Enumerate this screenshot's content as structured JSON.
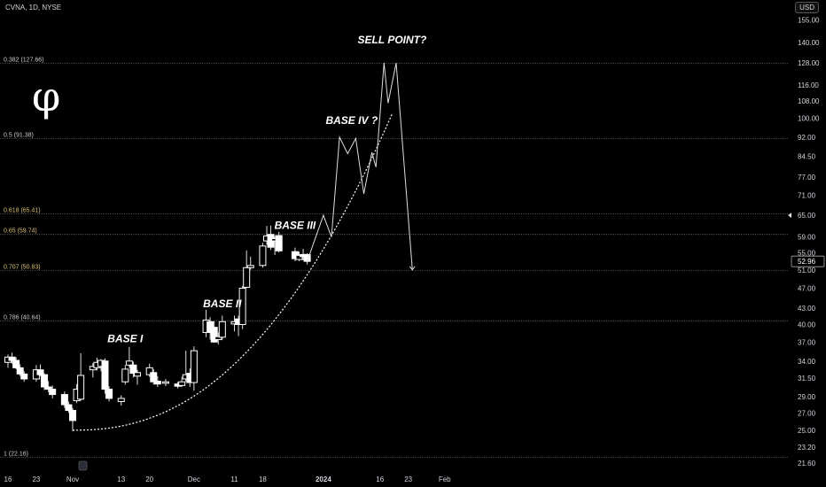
{
  "header": {
    "symbol": "CVNA, 1D, NYSE",
    "currency": "USD"
  },
  "logo": {
    "glyph": "φ"
  },
  "chart_data": {
    "type": "candlestick",
    "y_scale": "log",
    "ylim": [
      20.5,
      160
    ],
    "y_ticks": [
      "155.00",
      "140.00",
      "128.00",
      "116.00",
      "108.00",
      "100.00",
      "92.00",
      "84.50",
      "77.00",
      "71.00",
      "65.00",
      "59.00",
      "55.00",
      "51.00",
      "47.00",
      "43.00",
      "40.00",
      "37.00",
      "34.00",
      "31.50",
      "29.00",
      "27.00",
      "25.00",
      "23.20",
      "21.60"
    ],
    "x_ticks": [
      {
        "label": "16",
        "date": "2023-10-16",
        "bold": false
      },
      {
        "label": "23",
        "date": "2023-10-23",
        "bold": false
      },
      {
        "label": "Nov",
        "date": "2023-11-01",
        "bold": false
      },
      {
        "label": "13",
        "date": "2023-11-13",
        "bold": false
      },
      {
        "label": "20",
        "date": "2023-11-20",
        "bold": false
      },
      {
        "label": "Dec",
        "date": "2023-12-01",
        "bold": false
      },
      {
        "label": "11",
        "date": "2023-12-11",
        "bold": false
      },
      {
        "label": "18",
        "date": "2023-12-18",
        "bold": false
      },
      {
        "label": "2024",
        "date": "2024-01-02",
        "bold": true
      },
      {
        "label": "16",
        "date": "2024-01-16",
        "bold": false
      },
      {
        "label": "23",
        "date": "2024-01-23",
        "bold": false
      },
      {
        "label": "Feb",
        "date": "2024-02-01",
        "bold": false
      }
    ],
    "fib_levels": [
      {
        "label": "0.382 (127.66)",
        "value": 127.66,
        "color": "#cccccc"
      },
      {
        "label": "0.5 (91.38)",
        "value": 91.38,
        "color": "#cccccc"
      },
      {
        "label": "0.618 (65.41)",
        "value": 65.41,
        "color": "#d8c070"
      },
      {
        "label": "0.65 (59.74)",
        "value": 59.74,
        "color": "#d8c070"
      },
      {
        "label": "0.707 (50.83)",
        "value": 50.83,
        "color": "#d8c070"
      },
      {
        "label": "0.786 (40.64)",
        "value": 40.64,
        "color": "#cccccc"
      },
      {
        "label": "1 (22.16)",
        "value": 22.16,
        "color": "#cccccc"
      }
    ],
    "last_price": "52.96",
    "candles": [
      {
        "date": "2023-10-16",
        "o": 33.8,
        "h": 35.0,
        "l": 33.0,
        "c": 34.6
      },
      {
        "date": "2023-10-17",
        "o": 34.6,
        "h": 35.3,
        "l": 33.6,
        "c": 34.1
      },
      {
        "date": "2023-10-18",
        "o": 34.1,
        "h": 34.6,
        "l": 32.8,
        "c": 33.0
      },
      {
        "date": "2023-10-19",
        "o": 33.0,
        "h": 33.5,
        "l": 31.8,
        "c": 32.1
      },
      {
        "date": "2023-10-20",
        "o": 32.1,
        "h": 32.5,
        "l": 31.0,
        "c": 31.4
      },
      {
        "date": "2023-10-23",
        "o": 31.4,
        "h": 33.4,
        "l": 31.0,
        "c": 32.7
      },
      {
        "date": "2023-10-24",
        "o": 32.7,
        "h": 33.5,
        "l": 31.8,
        "c": 32.0
      },
      {
        "date": "2023-10-25",
        "o": 32.0,
        "h": 32.2,
        "l": 29.9,
        "c": 30.3
      },
      {
        "date": "2023-10-26",
        "o": 30.3,
        "h": 31.1,
        "l": 29.6,
        "c": 30.0
      },
      {
        "date": "2023-10-27",
        "o": 30.0,
        "h": 30.5,
        "l": 28.8,
        "c": 29.3
      },
      {
        "date": "2023-10-30",
        "o": 29.3,
        "h": 29.7,
        "l": 27.6,
        "c": 28.0
      },
      {
        "date": "2023-10-31",
        "o": 28.0,
        "h": 28.4,
        "l": 27.0,
        "c": 27.3
      },
      {
        "date": "2023-11-01",
        "o": 27.3,
        "h": 27.6,
        "l": 24.9,
        "c": 26.1
      },
      {
        "date": "2023-11-02",
        "o": 28.5,
        "h": 30.7,
        "l": 28.2,
        "c": 30.0
      },
      {
        "date": "2023-11-03",
        "o": 28.7,
        "h": 35.2,
        "l": 28.5,
        "c": 31.9
      },
      {
        "date": "2023-11-06",
        "o": 32.7,
        "h": 33.7,
        "l": 31.6,
        "c": 33.2
      },
      {
        "date": "2023-11-07",
        "o": 33.0,
        "h": 34.5,
        "l": 32.6,
        "c": 33.8
      },
      {
        "date": "2023-11-08",
        "o": 33.2,
        "h": 34.3,
        "l": 32.5,
        "c": 34.1
      },
      {
        "date": "2023-11-09",
        "o": 34.0,
        "h": 34.4,
        "l": 29.4,
        "c": 30.0
      },
      {
        "date": "2023-11-10",
        "o": 30.0,
        "h": 30.4,
        "l": 28.4,
        "c": 28.8
      },
      {
        "date": "2023-11-13",
        "o": 28.4,
        "h": 29.2,
        "l": 27.9,
        "c": 28.8
      },
      {
        "date": "2023-11-14",
        "o": 31.0,
        "h": 33.4,
        "l": 30.6,
        "c": 32.8
      },
      {
        "date": "2023-11-15",
        "o": 33.4,
        "h": 36.2,
        "l": 33.0,
        "c": 34.0
      },
      {
        "date": "2023-11-16",
        "o": 33.4,
        "h": 33.9,
        "l": 31.6,
        "c": 32.2
      },
      {
        "date": "2023-11-17",
        "o": 31.8,
        "h": 32.7,
        "l": 30.6,
        "c": 32.3
      },
      {
        "date": "2023-11-20",
        "o": 32.0,
        "h": 33.6,
        "l": 31.7,
        "c": 33.0
      },
      {
        "date": "2023-11-21",
        "o": 32.3,
        "h": 32.8,
        "l": 30.6,
        "c": 31.0
      },
      {
        "date": "2023-11-22",
        "o": 31.1,
        "h": 31.8,
        "l": 30.3,
        "c": 30.7
      },
      {
        "date": "2023-11-24",
        "o": 30.8,
        "h": 31.4,
        "l": 30.4,
        "c": 31.0
      },
      {
        "date": "2023-11-27",
        "o": 30.7,
        "h": 31.0,
        "l": 30.1,
        "c": 30.4
      },
      {
        "date": "2023-11-28",
        "o": 30.5,
        "h": 31.7,
        "l": 30.3,
        "c": 31.0
      },
      {
        "date": "2023-11-29",
        "o": 31.4,
        "h": 35.6,
        "l": 31.0,
        "c": 32.0
      },
      {
        "date": "2023-11-30",
        "o": 32.2,
        "h": 32.9,
        "l": 30.3,
        "c": 30.9
      },
      {
        "date": "2023-12-01",
        "o": 30.9,
        "h": 36.3,
        "l": 29.8,
        "c": 35.6
      },
      {
        "date": "2023-12-04",
        "o": 38.6,
        "h": 42.7,
        "l": 37.8,
        "c": 40.8
      },
      {
        "date": "2023-12-05",
        "o": 40.5,
        "h": 41.3,
        "l": 37.4,
        "c": 38.6
      },
      {
        "date": "2023-12-06",
        "o": 39.5,
        "h": 40.6,
        "l": 36.9,
        "c": 37.0
      },
      {
        "date": "2023-12-07",
        "o": 37.4,
        "h": 38.6,
        "l": 36.6,
        "c": 37.9
      },
      {
        "date": "2023-12-08",
        "o": 37.8,
        "h": 41.6,
        "l": 37.3,
        "c": 40.5
      },
      {
        "date": "2023-12-11",
        "o": 40.1,
        "h": 41.6,
        "l": 38.8,
        "c": 40.5
      },
      {
        "date": "2023-12-12",
        "o": 41.0,
        "h": 41.6,
        "l": 38.0,
        "c": 40.0
      },
      {
        "date": "2023-12-13",
        "o": 40.0,
        "h": 47.5,
        "l": 39.2,
        "c": 47.0
      },
      {
        "date": "2023-12-14",
        "o": 47.2,
        "h": 55.6,
        "l": 47.0,
        "c": 51.5
      },
      {
        "date": "2023-12-15",
        "o": 51.5,
        "h": 54.1,
        "l": 51.0,
        "c": 52.0
      },
      {
        "date": "2023-12-18",
        "o": 52.0,
        "h": 57.5,
        "l": 51.5,
        "c": 56.7
      },
      {
        "date": "2023-12-19",
        "o": 58.0,
        "h": 62.0,
        "l": 57.0,
        "c": 59.3
      },
      {
        "date": "2023-12-20",
        "o": 59.7,
        "h": 62.1,
        "l": 55.7,
        "c": 56.4
      },
      {
        "date": "2023-12-21",
        "o": 58.0,
        "h": 59.3,
        "l": 54.5,
        "c": 58.6
      },
      {
        "date": "2023-12-22",
        "o": 59.4,
        "h": 60.4,
        "l": 55.1,
        "c": 55.5
      },
      {
        "date": "2023-12-26",
        "o": 55.3,
        "h": 56.3,
        "l": 53.0,
        "c": 53.6
      },
      {
        "date": "2023-12-27",
        "o": 53.4,
        "h": 55.3,
        "l": 53.0,
        "c": 54.4
      },
      {
        "date": "2023-12-28",
        "o": 54.6,
        "h": 56.0,
        "l": 53.2,
        "c": 54.1
      },
      {
        "date": "2023-12-29",
        "o": 54.6,
        "h": 54.9,
        "l": 52.2,
        "c": 52.96
      }
    ],
    "projection": [
      {
        "date": "2023-12-29",
        "v": 52.96
      },
      {
        "date": "2024-01-02",
        "v": 65.0
      },
      {
        "date": "2024-01-04",
        "v": 59.0
      },
      {
        "date": "2024-01-06",
        "v": 92.0
      },
      {
        "date": "2024-01-08",
        "v": 85.5
      },
      {
        "date": "2024-01-10",
        "v": 91.5
      },
      {
        "date": "2024-01-12",
        "v": 71.5
      },
      {
        "date": "2024-01-14",
        "v": 86.0
      },
      {
        "date": "2024-01-15",
        "v": 80.5
      },
      {
        "date": "2024-01-17",
        "v": 128.0
      },
      {
        "date": "2024-01-18",
        "v": 107.0
      },
      {
        "date": "2024-01-20",
        "v": 128.0
      },
      {
        "date": "2024-01-24",
        "v": 51.0
      }
    ],
    "arc": {
      "start": {
        "date": "2023-11-01",
        "v": 25.0
      },
      "end": {
        "date": "2024-01-19",
        "v": 102.0
      }
    },
    "annotations": [
      {
        "text": "BASE I",
        "date": "2023-11-14",
        "v": 37.0
      },
      {
        "text": "BASE II",
        "date": "2023-12-08",
        "v": 43.2
      },
      {
        "text": "BASE III",
        "date": "2023-12-26",
        "v": 61.2
      },
      {
        "text": "BASE IV ?",
        "date": "2024-01-09",
        "v": 97.5
      },
      {
        "text": "SELL POINT?",
        "date": "2024-01-19",
        "v": 139.5
      }
    ]
  }
}
